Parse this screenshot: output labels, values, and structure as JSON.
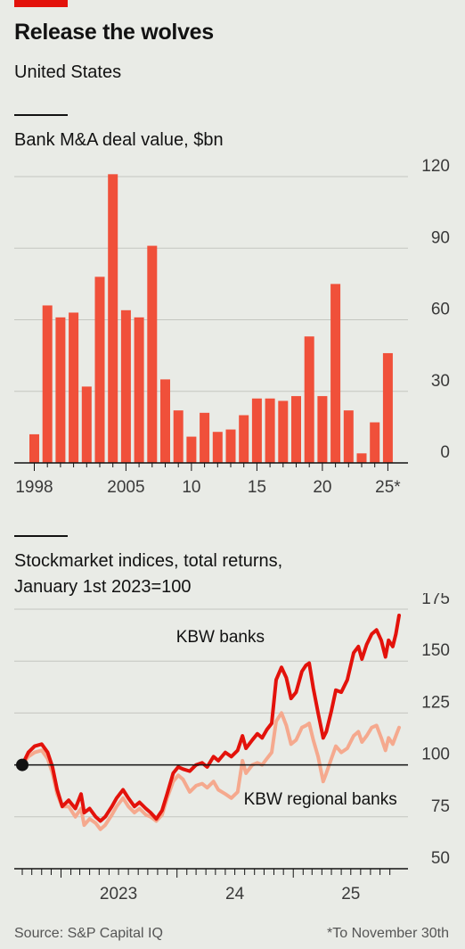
{
  "header": {
    "title": "Release the wolves",
    "subtitle": "United States"
  },
  "footer": {
    "source": "Source: S&P Capital IQ",
    "note": "*To November 30th"
  },
  "colors": {
    "bar": "#f0503a",
    "kbw_banks": "#e3120b",
    "kbw_regional": "#f5a98e",
    "accent": "#e3120b"
  },
  "chart_data": [
    {
      "type": "bar",
      "title": "Bank M&A deal value, $bn",
      "x": [
        1998,
        1999,
        2000,
        2001,
        2002,
        2003,
        2004,
        2005,
        2006,
        2007,
        2008,
        2009,
        2010,
        2011,
        2012,
        2013,
        2014,
        2015,
        2016,
        2017,
        2018,
        2019,
        2020,
        2021,
        2022,
        2023,
        2024,
        2025
      ],
      "values": [
        12,
        66,
        61,
        63,
        32,
        78,
        121,
        64,
        61,
        91,
        35,
        22,
        11,
        21,
        13,
        14,
        20,
        27,
        27,
        26,
        28,
        53,
        28,
        75,
        22,
        4,
        17,
        46
      ],
      "x_tick_labels": [
        {
          "x": 1998,
          "label": "1998"
        },
        {
          "x": 2005,
          "label": "2005"
        },
        {
          "x": 2010,
          "label": "10"
        },
        {
          "x": 2015,
          "label": "15"
        },
        {
          "x": 2020,
          "label": "20"
        },
        {
          "x": 2025,
          "label": "25*"
        }
      ],
      "y_ticks": [
        0,
        30,
        60,
        90,
        120
      ],
      "ylim": [
        0,
        120
      ],
      "grid": true
    },
    {
      "type": "line",
      "title_lines": [
        "Stockmarket indices, total returns,",
        "January 1st 2023=100"
      ],
      "x_range": [
        "2022-09-01",
        "2025-11-30"
      ],
      "ylim": [
        50,
        175
      ],
      "y_ticks": [
        50,
        75,
        100,
        125,
        150,
        175
      ],
      "baseline": 100,
      "x_tick_labels": [
        {
          "x": "2023-07-01",
          "label": "2023"
        },
        {
          "x": "2024-07-01",
          "label": "24"
        },
        {
          "x": "2025-07-01",
          "label": "25"
        }
      ],
      "x_major_ticks": [
        "2023-01-01",
        "2024-01-01",
        "2025-01-01"
      ],
      "series": [
        {
          "name": "KBW banks",
          "points": [
            [
              "2022-09-01",
              100
            ],
            [
              "2022-09-20",
              106
            ],
            [
              "2022-10-10",
              109
            ],
            [
              "2022-11-01",
              110
            ],
            [
              "2022-11-20",
              106
            ],
            [
              "2022-12-05",
              99
            ],
            [
              "2022-12-20",
              88
            ],
            [
              "2023-01-05",
              80
            ],
            [
              "2023-01-25",
              83
            ],
            [
              "2023-02-15",
              79
            ],
            [
              "2023-03-05",
              86
            ],
            [
              "2023-03-15",
              77
            ],
            [
              "2023-04-01",
              79
            ],
            [
              "2023-04-20",
              75
            ],
            [
              "2023-05-05",
              73
            ],
            [
              "2023-05-20",
              75
            ],
            [
              "2023-06-10",
              80
            ],
            [
              "2023-06-25",
              84
            ],
            [
              "2023-07-15",
              88
            ],
            [
              "2023-08-01",
              84
            ],
            [
              "2023-08-20",
              80
            ],
            [
              "2023-09-05",
              82
            ],
            [
              "2023-09-25",
              79
            ],
            [
              "2023-10-10",
              77
            ],
            [
              "2023-10-28",
              74
            ],
            [
              "2023-11-15",
              78
            ],
            [
              "2023-12-01",
              86
            ],
            [
              "2023-12-20",
              96
            ],
            [
              "2024-01-05",
              99
            ],
            [
              "2024-01-20",
              98
            ],
            [
              "2024-02-10",
              97
            ],
            [
              "2024-03-01",
              100
            ],
            [
              "2024-03-20",
              101
            ],
            [
              "2024-04-05",
              99
            ],
            [
              "2024-04-25",
              104
            ],
            [
              "2024-05-10",
              102
            ],
            [
              "2024-06-01",
              106
            ],
            [
              "2024-06-20",
              104
            ],
            [
              "2024-07-10",
              107
            ],
            [
              "2024-07-25",
              114
            ],
            [
              "2024-08-05",
              108
            ],
            [
              "2024-08-25",
              112
            ],
            [
              "2024-09-10",
              115
            ],
            [
              "2024-09-25",
              113
            ],
            [
              "2024-10-10",
              117
            ],
            [
              "2024-10-25",
              120
            ],
            [
              "2024-11-08",
              141
            ],
            [
              "2024-11-25",
              147
            ],
            [
              "2024-12-10",
              142
            ],
            [
              "2024-12-25",
              132
            ],
            [
              "2025-01-10",
              135
            ],
            [
              "2025-01-28",
              145
            ],
            [
              "2025-02-10",
              148
            ],
            [
              "2025-02-20",
              149
            ],
            [
              "2025-03-05",
              137
            ],
            [
              "2025-03-20",
              125
            ],
            [
              "2025-04-05",
              113
            ],
            [
              "2025-04-15",
              116
            ],
            [
              "2025-05-01",
              126
            ],
            [
              "2025-05-15",
              136
            ],
            [
              "2025-06-01",
              135
            ],
            [
              "2025-06-20",
              141
            ],
            [
              "2025-07-10",
              154
            ],
            [
              "2025-07-25",
              157
            ],
            [
              "2025-08-05",
              151
            ],
            [
              "2025-08-20",
              158
            ],
            [
              "2025-09-05",
              163
            ],
            [
              "2025-09-20",
              165
            ],
            [
              "2025-10-05",
              160
            ],
            [
              "2025-10-18",
              152
            ],
            [
              "2025-10-28",
              160
            ],
            [
              "2025-11-10",
              157
            ],
            [
              "2025-11-20",
              163
            ],
            [
              "2025-11-30",
              172
            ]
          ]
        },
        {
          "name": "KBW regional banks",
          "points": [
            [
              "2022-09-01",
              100
            ],
            [
              "2022-09-20",
              104
            ],
            [
              "2022-10-10",
              106
            ],
            [
              "2022-11-01",
              107
            ],
            [
              "2022-11-20",
              103
            ],
            [
              "2022-12-05",
              96
            ],
            [
              "2022-12-20",
              86
            ],
            [
              "2023-01-05",
              80
            ],
            [
              "2023-01-25",
              80
            ],
            [
              "2023-02-15",
              75
            ],
            [
              "2023-03-05",
              79
            ],
            [
              "2023-03-15",
              71
            ],
            [
              "2023-04-01",
              74
            ],
            [
              "2023-04-20",
              72
            ],
            [
              "2023-05-05",
              69
            ],
            [
              "2023-05-20",
              71
            ],
            [
              "2023-06-10",
              76
            ],
            [
              "2023-06-25",
              80
            ],
            [
              "2023-07-15",
              84
            ],
            [
              "2023-08-01",
              80
            ],
            [
              "2023-08-20",
              77
            ],
            [
              "2023-09-05",
              79
            ],
            [
              "2023-09-25",
              76
            ],
            [
              "2023-10-10",
              75
            ],
            [
              "2023-10-28",
              73
            ],
            [
              "2023-11-15",
              76
            ],
            [
              "2023-12-01",
              84
            ],
            [
              "2023-12-20",
              92
            ],
            [
              "2024-01-05",
              95
            ],
            [
              "2024-01-20",
              93
            ],
            [
              "2024-02-10",
              87
            ],
            [
              "2024-03-01",
              90
            ],
            [
              "2024-03-20",
              91
            ],
            [
              "2024-04-05",
              89
            ],
            [
              "2024-04-25",
              92
            ],
            [
              "2024-05-10",
              88
            ],
            [
              "2024-06-01",
              86
            ],
            [
              "2024-06-20",
              84
            ],
            [
              "2024-07-10",
              87
            ],
            [
              "2024-07-25",
              102
            ],
            [
              "2024-08-05",
              96
            ],
            [
              "2024-08-25",
              100
            ],
            [
              "2024-09-10",
              101
            ],
            [
              "2024-09-25",
              100
            ],
            [
              "2024-10-10",
              103
            ],
            [
              "2024-10-25",
              106
            ],
            [
              "2024-11-08",
              121
            ],
            [
              "2024-11-25",
              125
            ],
            [
              "2024-12-10",
              119
            ],
            [
              "2024-12-25",
              110
            ],
            [
              "2025-01-10",
              112
            ],
            [
              "2025-01-28",
              118
            ],
            [
              "2025-02-10",
              119
            ],
            [
              "2025-02-20",
              120
            ],
            [
              "2025-03-05",
              112
            ],
            [
              "2025-03-20",
              104
            ],
            [
              "2025-04-05",
              92
            ],
            [
              "2025-04-15",
              96
            ],
            [
              "2025-05-01",
              103
            ],
            [
              "2025-05-15",
              109
            ],
            [
              "2025-06-01",
              106
            ],
            [
              "2025-06-20",
              108
            ],
            [
              "2025-07-10",
              114
            ],
            [
              "2025-07-25",
              116
            ],
            [
              "2025-08-05",
              111
            ],
            [
              "2025-08-20",
              114
            ],
            [
              "2025-09-05",
              118
            ],
            [
              "2025-09-20",
              119
            ],
            [
              "2025-10-05",
              113
            ],
            [
              "2025-10-18",
              107
            ],
            [
              "2025-10-28",
              113
            ],
            [
              "2025-11-10",
              110
            ],
            [
              "2025-11-20",
              114
            ],
            [
              "2025-11-30",
              118
            ]
          ]
        }
      ]
    }
  ]
}
